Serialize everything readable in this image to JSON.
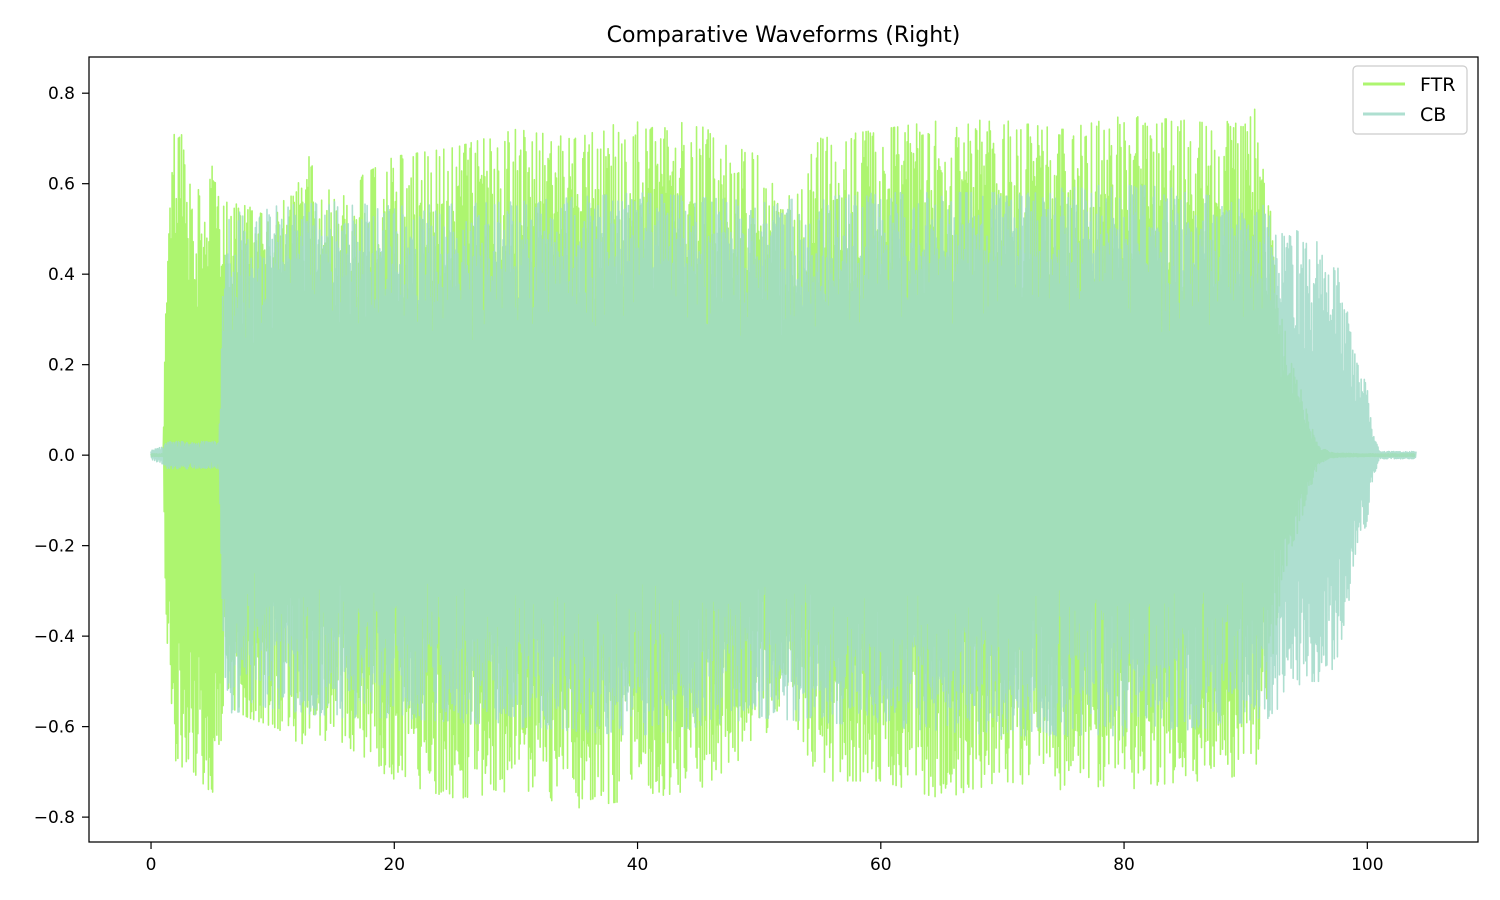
{
  "chart_data": {
    "type": "line",
    "title": "Comparative Waveforms (Right)",
    "xlabel": "",
    "ylabel": "",
    "xlim": [
      -5.1,
      109.1
    ],
    "ylim": [
      -0.855,
      0.88
    ],
    "x_ticks": [
      0,
      20,
      40,
      60,
      80,
      100
    ],
    "x_tick_labels": [
      "0",
      "20",
      "40",
      "60",
      "80",
      "100"
    ],
    "y_ticks": [
      -0.8,
      -0.6,
      -0.4,
      -0.2,
      0.0,
      0.2,
      0.4,
      0.6,
      0.8
    ],
    "y_tick_labels": [
      "−0.8",
      "−0.6",
      "−0.4",
      "−0.2",
      "0.0",
      "0.2",
      "0.4",
      "0.6",
      "0.8"
    ],
    "grid": false,
    "legend_position": "top-right",
    "series": [
      {
        "name": "FTR",
        "color": "#adf56f",
        "x_range": [
          0,
          103.9
        ],
        "envelope": {
          "x": [
            0,
            1.0,
            1.2,
            2.0,
            3.0,
            4.0,
            5.0,
            5.6,
            6.0,
            8.0,
            10,
            13,
            15,
            20,
            25,
            30,
            35,
            40,
            45,
            50,
            52,
            55,
            60,
            65,
            70,
            75,
            80,
            85,
            88,
            90,
            91,
            92,
            92.5,
            93,
            94,
            95,
            96,
            97,
            98,
            100,
            103.9
          ],
          "max": [
            0.003,
            0.003,
            0.38,
            0.8,
            0.62,
            0.66,
            0.64,
            0.6,
            0.56,
            0.55,
            0.52,
            0.66,
            0.58,
            0.66,
            0.68,
            0.72,
            0.7,
            0.75,
            0.73,
            0.66,
            0.55,
            0.7,
            0.72,
            0.74,
            0.74,
            0.72,
            0.75,
            0.74,
            0.73,
            0.76,
            0.78,
            0.55,
            0.4,
            0.3,
            0.2,
            0.1,
            0.02,
            0.006,
            0.004,
            0.003,
            0.003
          ],
          "min": [
            -0.003,
            -0.003,
            -0.4,
            -0.7,
            -0.68,
            -0.72,
            -0.75,
            -0.7,
            -0.55,
            -0.58,
            -0.6,
            -0.65,
            -0.62,
            -0.72,
            -0.76,
            -0.74,
            -0.78,
            -0.76,
            -0.74,
            -0.64,
            -0.55,
            -0.72,
            -0.72,
            -0.76,
            -0.72,
            -0.74,
            -0.74,
            -0.72,
            -0.72,
            -0.7,
            -0.68,
            -0.5,
            -0.4,
            -0.3,
            -0.2,
            -0.1,
            -0.02,
            -0.006,
            -0.004,
            -0.003,
            -0.003
          ]
        }
      },
      {
        "name": "CB",
        "color": "#a0d9c8",
        "x_range": [
          0,
          104.0
        ],
        "envelope": {
          "x": [
            0,
            1.0,
            1.2,
            5.0,
            5.6,
            6.0,
            7.0,
            8.0,
            10,
            15,
            20,
            30,
            40,
            50,
            60,
            70,
            80,
            88,
            90,
            92,
            94,
            95,
            96,
            97,
            97.5,
            98,
            98.5,
            99,
            100,
            100.5,
            101,
            104
          ],
          "max": [
            0.01,
            0.02,
            0.03,
            0.03,
            0.03,
            0.5,
            0.55,
            0.52,
            0.55,
            0.56,
            0.55,
            0.56,
            0.58,
            0.56,
            0.58,
            0.58,
            0.6,
            0.58,
            0.56,
            0.55,
            0.5,
            0.48,
            0.47,
            0.45,
            0.42,
            0.38,
            0.3,
            0.22,
            0.15,
            0.05,
            0.008,
            0.008
          ],
          "min": [
            -0.01,
            -0.02,
            -0.03,
            -0.03,
            -0.03,
            -0.5,
            -0.62,
            -0.55,
            -0.56,
            -0.58,
            -0.58,
            -0.6,
            -0.62,
            -0.58,
            -0.6,
            -0.62,
            -0.62,
            -0.6,
            -0.6,
            -0.58,
            -0.52,
            -0.5,
            -0.5,
            -0.48,
            -0.45,
            -0.4,
            -0.32,
            -0.22,
            -0.15,
            -0.05,
            -0.008,
            -0.008
          ]
        }
      }
    ]
  }
}
